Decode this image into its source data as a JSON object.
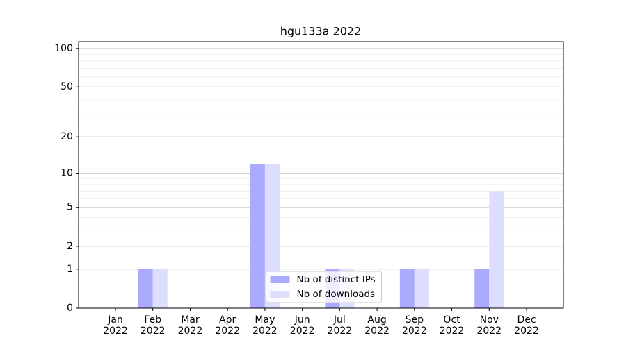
{
  "chart_data": {
    "type": "bar",
    "title": "hgu133a 2022",
    "categories": [
      "Jan 2022",
      "Feb 2022",
      "Mar 2022",
      "Apr 2022",
      "May 2022",
      "Jun 2022",
      "Jul 2022",
      "Aug 2022",
      "Sep 2022",
      "Oct 2022",
      "Nov 2022",
      "Dec 2022"
    ],
    "series": [
      {
        "name": "Nb of distinct IPs",
        "color": "#aaaaff",
        "values": [
          0,
          1,
          0,
          0,
          12,
          0,
          1,
          0,
          1,
          0,
          1,
          0
        ]
      },
      {
        "name": "Nb of downloads",
        "color": "#ddddff",
        "values": [
          0,
          1,
          0,
          0,
          12,
          0,
          1,
          0,
          1,
          0,
          7,
          0
        ]
      }
    ],
    "yscale": "log1p",
    "ylim": [
      0,
      113
    ],
    "yticks": [
      0,
      1,
      2,
      5,
      10,
      20,
      50,
      100
    ],
    "grid": true,
    "legend": "lower center"
  }
}
